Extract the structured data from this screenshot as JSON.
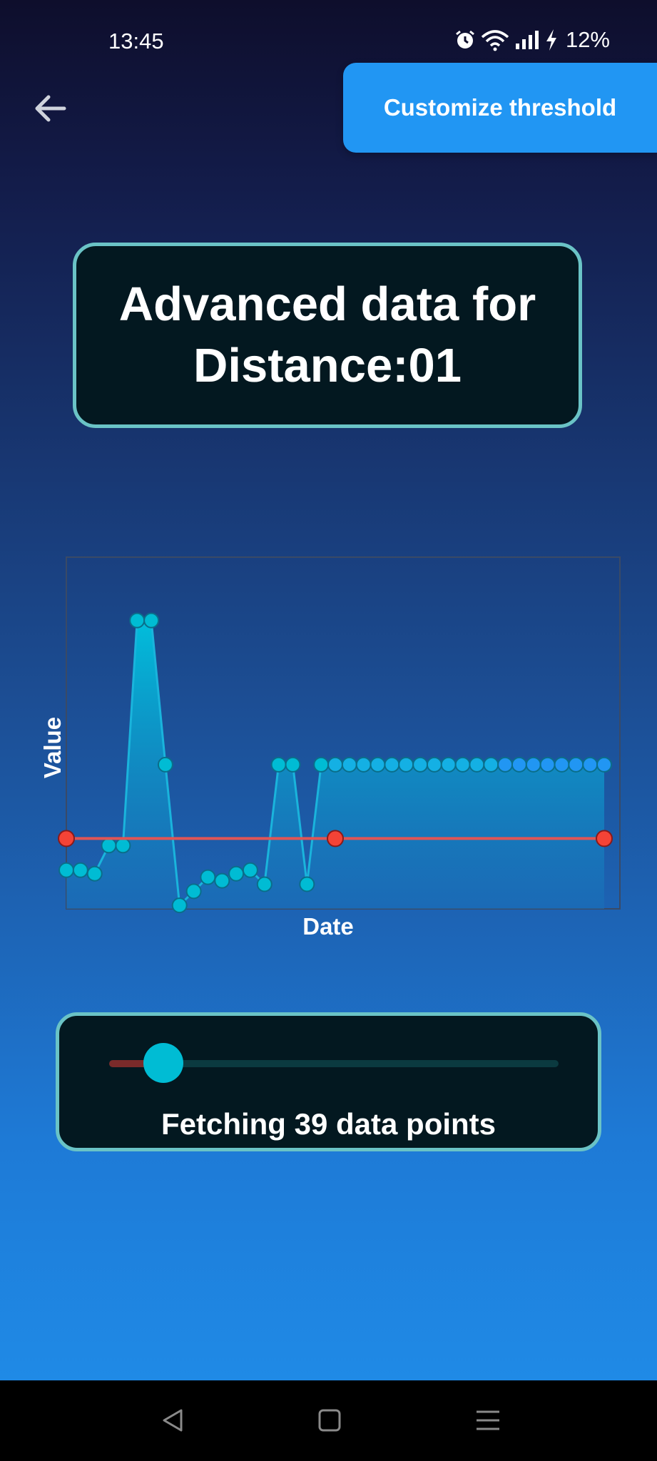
{
  "status_bar": {
    "time": "13:45",
    "battery": "12%",
    "icons": [
      "alarm-icon",
      "wifi-icon",
      "signal-icon",
      "charging-icon"
    ]
  },
  "header": {
    "back_icon": "arrow-left-icon",
    "customize_label": "Customize threshold"
  },
  "title": {
    "line1": "Advanced data for",
    "line2": "Distance:01"
  },
  "colors": {
    "accent": "#2196f3",
    "card_bg": "#031820",
    "card_border": "#6ac3c6",
    "series": "#00bcd4",
    "threshold": "#f44336"
  },
  "chart_data": {
    "type": "line",
    "xlabel": "Date",
    "ylabel": "Value",
    "legend": "none",
    "grid": false,
    "ylim": [
      0,
      100
    ],
    "series": [
      {
        "values": [
          11,
          11,
          10,
          18,
          18,
          82,
          82,
          41,
          1,
          5,
          9,
          8,
          10,
          11,
          7,
          41,
          41,
          7,
          41,
          41,
          41,
          41,
          41,
          41,
          41,
          41,
          41,
          41,
          41,
          41,
          41,
          41,
          41,
          41,
          41,
          41,
          41,
          41,
          41
        ],
        "fill": true,
        "color": "#00bcd4"
      },
      {
        "values": [
          20,
          20,
          20
        ],
        "color": "#f44336"
      }
    ]
  },
  "slider": {
    "value": 39,
    "fraction": 0.12,
    "caption": "Fetching 39 data points"
  },
  "nav": {
    "icons": [
      "back-triangle-icon",
      "home-square-icon",
      "recents-menu-icon"
    ]
  }
}
